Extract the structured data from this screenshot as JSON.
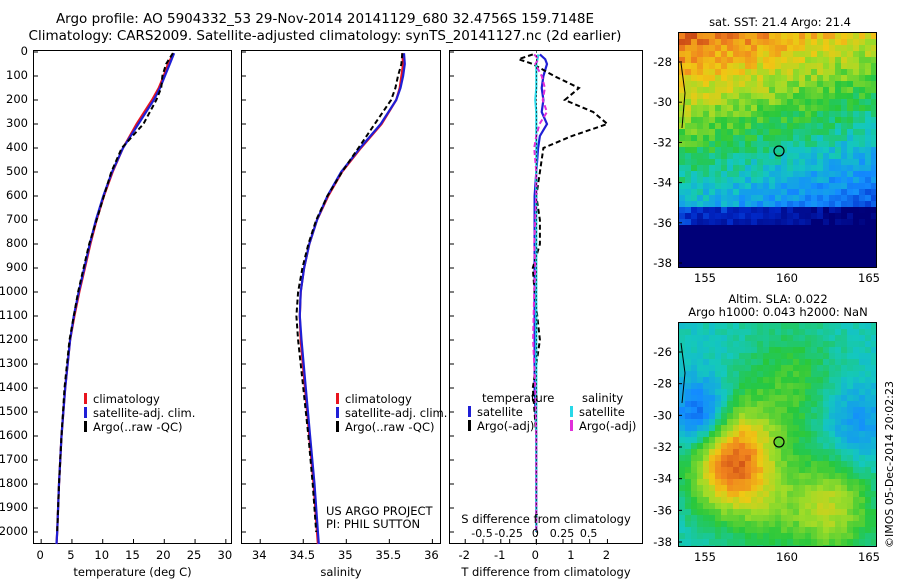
{
  "title": {
    "line1": "Argo profile: AO 5904332_53 29-Nov-2014 20141129_680 32.4756S 159.7148E",
    "line2": "Climatology: CARS2009. Satellite-adjusted climatology: synTS_20141127.nc (2d earlier)"
  },
  "colors": {
    "climatology": "#e8141e",
    "satellite": "#1f1fd6",
    "argo": "#000000",
    "sat_salinity": "#27d8e8",
    "argo_adj_salinity": "#e02fd9"
  },
  "depth_axis": {
    "ylim": [
      0,
      2050
    ],
    "ticks": [
      0,
      100,
      200,
      300,
      400,
      500,
      600,
      700,
      800,
      900,
      1000,
      1100,
      1200,
      1300,
      1400,
      1500,
      1600,
      1700,
      1800,
      1900,
      2000
    ]
  },
  "legend_panels": {
    "climatology": "climatology",
    "satellite_adj": "satellite-adj. clim.",
    "argo": "Argo(..raw -QC)"
  },
  "project": {
    "line1": "US ARGO PROJECT",
    "line2": "PI: PHIL SUTTON"
  },
  "diff_legend": {
    "temperature": "temperature",
    "salinity": "salinity",
    "satellite": "satellite",
    "argo_adj": "Argo(-adj)"
  },
  "map_sst": {
    "title": "sat. SST: 21.4  Argo: 21.4",
    "lat_ticks": [
      "-28",
      "-30",
      "-32",
      "-34",
      "-36",
      "-38"
    ],
    "lon_ticks": [
      "155",
      "160",
      "165"
    ]
  },
  "map_sla": {
    "title1": "Altim. SLA: 0.022",
    "title2": "Argo h1000: 0.043  h2000: NaN",
    "lat_ticks": [
      "-26",
      "-28",
      "-30",
      "-32",
      "-34",
      "-36",
      "-38"
    ],
    "lon_ticks": [
      "155",
      "160",
      "165"
    ]
  },
  "timestamp": "©IMOS 05-Dec-2014 20:02:23",
  "chart_data": [
    {
      "type": "line",
      "xlabel": "temperature (deg C)",
      "ylabel": "",
      "xlim": [
        -1,
        31
      ],
      "ylim": [
        0,
        2050
      ],
      "xticks": [
        0,
        5,
        10,
        15,
        20,
        25,
        30
      ],
      "depth": [
        5,
        50,
        100,
        150,
        200,
        300,
        400,
        500,
        600,
        700,
        800,
        900,
        1000,
        1100,
        1200,
        1400,
        1600,
        1800,
        2000,
        2050
      ],
      "series": [
        {
          "name": "climatology",
          "values": [
            21.5,
            20.6,
            19.9,
            19.1,
            18.0,
            15.5,
            13.3,
            11.6,
            10.2,
            9.0,
            8.0,
            7.1,
            6.2,
            5.4,
            4.7,
            3.9,
            3.3,
            2.9,
            2.6,
            2.5
          ]
        },
        {
          "name": "satellite-adj. clim.",
          "values": [
            21.6,
            20.9,
            20.1,
            19.3,
            18.3,
            15.8,
            13.3,
            11.5,
            10.1,
            8.9,
            7.9,
            7.0,
            6.1,
            5.3,
            4.7,
            3.9,
            3.3,
            2.9,
            2.6,
            2.5
          ]
        },
        {
          "name": "Argo(..raw -QC)",
          "values": [
            21.4,
            20.3,
            19.7,
            19.5,
            18.7,
            16.6,
            13.1,
            11.4,
            10.2,
            9.0,
            7.8,
            6.9,
            6.0,
            5.3,
            4.6,
            3.8,
            3.3,
            2.9,
            2.6,
            null
          ]
        }
      ]
    },
    {
      "type": "line",
      "xlabel": "salinity",
      "ylabel": "",
      "xlim": [
        33.8,
        36.1
      ],
      "ylim": [
        0,
        2050
      ],
      "xticks": [
        34,
        34.5,
        35,
        35.5,
        36
      ],
      "depth": [
        5,
        50,
        100,
        150,
        200,
        300,
        400,
        500,
        600,
        700,
        800,
        900,
        1000,
        1100,
        1200,
        1400,
        1600,
        1800,
        2000,
        2050
      ],
      "series": [
        {
          "name": "climatology",
          "values": [
            35.65,
            35.66,
            35.64,
            35.62,
            35.58,
            35.41,
            35.17,
            34.95,
            34.79,
            34.66,
            34.57,
            34.51,
            34.47,
            34.46,
            34.47,
            34.52,
            34.57,
            34.62,
            34.66,
            34.67
          ]
        },
        {
          "name": "satellite-adj. clim.",
          "values": [
            35.67,
            35.68,
            35.66,
            35.63,
            35.58,
            35.4,
            35.16,
            34.94,
            34.78,
            34.66,
            34.57,
            34.51,
            34.47,
            34.46,
            34.48,
            34.53,
            34.58,
            34.63,
            34.67,
            34.68
          ]
        },
        {
          "name": "Argo(..raw -QC)",
          "values": [
            35.65,
            35.64,
            35.6,
            35.57,
            35.52,
            35.33,
            35.14,
            34.95,
            34.78,
            34.65,
            34.56,
            34.49,
            34.44,
            34.42,
            34.44,
            34.5,
            34.56,
            34.61,
            34.65,
            null
          ]
        }
      ]
    },
    {
      "type": "line",
      "xlabel": "T difference from climatology",
      "xlabel2": "S difference from climatology",
      "xlim": [
        -2.4,
        3.0
      ],
      "ylim": [
        0,
        2050
      ],
      "xticks": [
        -2,
        -1,
        0,
        1,
        2
      ],
      "xticklabels": [
        "-2",
        "-1",
        "0",
        "1",
        "2"
      ],
      "s_xticks": [
        -0.5,
        -0.25,
        0,
        0.25,
        0.5
      ],
      "s_xticklabels": [
        "-0.5",
        "-0.25",
        "0",
        "0.25",
        "0.5"
      ],
      "depth": [
        10,
        30,
        50,
        100,
        150,
        200,
        250,
        300,
        350,
        400,
        500,
        600,
        700,
        800,
        900,
        1000,
        1200,
        1400,
        1600,
        1800,
        2000
      ],
      "series": [
        {
          "name": "temperature satellite",
          "values": [
            0.1,
            0.25,
            0.3,
            0.2,
            0.15,
            0.2,
            0.15,
            0.3,
            0.1,
            0.05,
            0.0,
            -0.05,
            -0.05,
            -0.05,
            -0.05,
            -0.05,
            -0.05,
            -0.05,
            0.0,
            0.0,
            0.0
          ]
        },
        {
          "name": "temperature Argo(-adj)",
          "values": [
            -0.1,
            -0.5,
            -0.1,
            0.5,
            1.2,
            0.8,
            1.6,
            2.0,
            1.0,
            0.2,
            0.1,
            0.0,
            0.1,
            0.1,
            -0.1,
            -0.05,
            0.1,
            -0.1,
            0.0,
            0.0,
            0.0
          ]
        },
        {
          "name": "salinity satellite",
          "values": [
            0.02,
            0.01,
            0.0,
            0.0,
            0.0,
            -0.01,
            0.0,
            0.0,
            0.0,
            0.0,
            0.0,
            0.0,
            0.0,
            0.0,
            0.0,
            0.0,
            0.0,
            0.0,
            0.0,
            0.0,
            0.0
          ]
        },
        {
          "name": "salinity Argo(-adj)",
          "values": [
            -0.02,
            0.02,
            -0.01,
            0.05,
            0.08,
            0.06,
            0.1,
            0.03,
            0.0,
            -0.02,
            0.0,
            0.0,
            -0.01,
            -0.02,
            -0.01,
            -0.02,
            -0.03,
            -0.01,
            0.0,
            0.0,
            0.0
          ]
        }
      ]
    }
  ]
}
